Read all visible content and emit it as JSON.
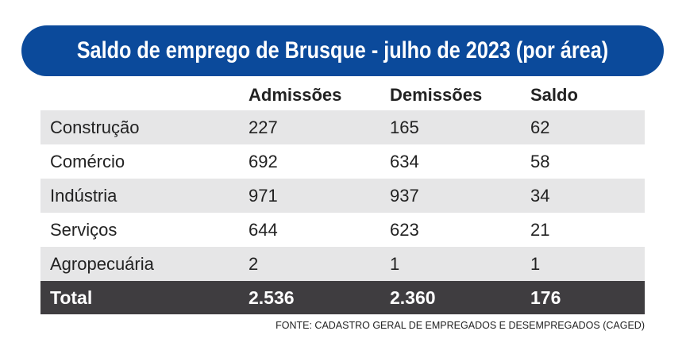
{
  "title": "Saldo de emprego de Brusque - julho de 2023 (por área)",
  "source": "FONTE: CADASTRO GERAL DE EMPREGADOS E DESEMPREGADOS (CAGED)",
  "chart_data": {
    "type": "table",
    "title": "Saldo de emprego de Brusque - julho de 2023 (por área)",
    "columns": [
      "",
      "Admissões",
      "Demissões",
      "Saldo"
    ],
    "rows": [
      [
        "Construção",
        "227",
        "165",
        "62"
      ],
      [
        "Comércio",
        "692",
        "634",
        "58"
      ],
      [
        "Indústria",
        "971",
        "937",
        "34"
      ],
      [
        "Serviços",
        "644",
        "623",
        "21"
      ],
      [
        "Agropecuária",
        "2",
        "1",
        "1"
      ]
    ],
    "total": [
      "Total",
      "2.536",
      "2.360",
      "176"
    ]
  }
}
